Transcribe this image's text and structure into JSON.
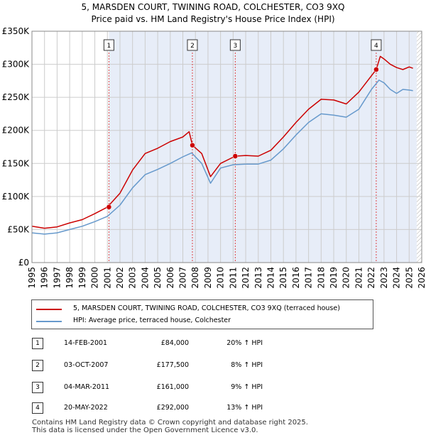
{
  "title_line1": "5, MARSDEN COURT, TWINING ROAD, COLCHESTER, CO3 9XQ",
  "title_line2": "Price paid vs. HM Land Registry's House Price Index (HPI)",
  "colors": {
    "property": "#cc0000",
    "hpi": "#6699cc",
    "band": "#dde6f5"
  },
  "chart_data": {
    "type": "line",
    "title": "5, MARSDEN COURT, TWINING ROAD, COLCHESTER, CO3 9XQ — Price paid vs. HM Land Registry's House Price Index (HPI)",
    "xlim": [
      1995,
      2026
    ],
    "ylim": [
      0,
      350000
    ],
    "y_ticks": [
      0,
      50000,
      100000,
      150000,
      200000,
      250000,
      300000,
      350000
    ],
    "y_tick_labels": [
      "£0",
      "£50K",
      "£100K",
      "£150K",
      "£200K",
      "£250K",
      "£300K",
      "£350K"
    ],
    "x_ticks": [
      1995,
      1996,
      1997,
      1998,
      1999,
      2000,
      2001,
      2002,
      2003,
      2004,
      2005,
      2006,
      2007,
      2008,
      2009,
      2010,
      2011,
      2012,
      2013,
      2014,
      2015,
      2016,
      2017,
      2018,
      2019,
      2020,
      2021,
      2022,
      2023,
      2024,
      2025,
      2026
    ],
    "x_tick_labels": [
      "1995",
      "1996",
      "1997",
      "1998",
      "1999",
      "2000",
      "2001",
      "2002",
      "2003",
      "2004",
      "2005",
      "2006",
      "2007",
      "2008",
      "2009",
      "2010",
      "2011",
      "2012",
      "2013",
      "2014",
      "2015",
      "2016",
      "2017",
      "2018",
      "2019",
      "2020",
      "2021",
      "2022",
      "2023",
      "2024",
      "2025",
      "2026"
    ],
    "grid": true,
    "shaded_range": [
      2001.12,
      2025.6
    ],
    "hatched_from": 2025.6,
    "series": [
      {
        "name": "5, MARSDEN COURT, TWINING ROAD, COLCHESTER, CO3 9XQ (terraced house)",
        "x": [
          1995,
          1996,
          1997,
          1998,
          1999,
          2000,
          2001,
          2002,
          2003,
          2004,
          2005,
          2006,
          2007,
          2007.5,
          2007.76,
          2008.5,
          2009.2,
          2010,
          2011.17,
          2012,
          2013,
          2014,
          2015,
          2016,
          2017,
          2018,
          2019,
          2020,
          2021,
          2022.38,
          2022.7,
          2023,
          2023.5,
          2024,
          2024.5,
          2025,
          2025.3
        ],
        "values": [
          55000,
          52000,
          54000,
          60000,
          65000,
          74000,
          84000,
          105000,
          140000,
          165000,
          173000,
          183000,
          190000,
          198000,
          177500,
          165000,
          130000,
          150000,
          161000,
          162000,
          161000,
          170000,
          190000,
          212000,
          232000,
          247000,
          246000,
          240000,
          258000,
          292000,
          312000,
          308000,
          300000,
          295000,
          292000,
          296000,
          294000
        ]
      },
      {
        "name": "HPI: Average price, terraced house, Colchester",
        "x": [
          1995,
          1996,
          1997,
          1998,
          1999,
          2000,
          2001,
          2002,
          2003,
          2004,
          2005,
          2006,
          2007,
          2007.7,
          2008.5,
          2009.2,
          2010,
          2011,
          2012,
          2013,
          2014,
          2015,
          2016,
          2017,
          2018,
          2019,
          2020,
          2021,
          2022,
          2022.6,
          2023,
          2023.5,
          2024,
          2024.5,
          2025,
          2025.3
        ],
        "values": [
          45000,
          43000,
          45000,
          50000,
          55000,
          62000,
          70000,
          87000,
          113000,
          133000,
          141000,
          150000,
          160000,
          166000,
          150000,
          120000,
          143000,
          148000,
          149000,
          149000,
          155000,
          172000,
          193000,
          212000,
          225000,
          223000,
          220000,
          232000,
          262000,
          276000,
          272000,
          262000,
          256000,
          262000,
          261000,
          260000
        ]
      }
    ],
    "markers": [
      {
        "label": "1",
        "x": 2001.12,
        "value": 84000
      },
      {
        "label": "2",
        "x": 2007.76,
        "value": 177500
      },
      {
        "label": "3",
        "x": 2011.17,
        "value": 161000
      },
      {
        "label": "4",
        "x": 2022.38,
        "value": 292000
      }
    ]
  },
  "legend": {
    "property": "5, MARSDEN COURT, TWINING ROAD, COLCHESTER, CO3 9XQ (terraced house)",
    "hpi": "HPI: Average price, terraced house, Colchester"
  },
  "transactions": [
    {
      "num": "1",
      "date": "14-FEB-2001",
      "price": "£84,000",
      "hpi": "20% ↑ HPI"
    },
    {
      "num": "2",
      "date": "03-OCT-2007",
      "price": "£177,500",
      "hpi": "8% ↑ HPI"
    },
    {
      "num": "3",
      "date": "04-MAR-2011",
      "price": "£161,000",
      "hpi": "9% ↑ HPI"
    },
    {
      "num": "4",
      "date": "20-MAY-2022",
      "price": "£292,000",
      "hpi": "13% ↑ HPI"
    }
  ],
  "footer_line1": "Contains HM Land Registry data © Crown copyright and database right 2025.",
  "footer_line2": "This data is licensed under the Open Government Licence v3.0."
}
